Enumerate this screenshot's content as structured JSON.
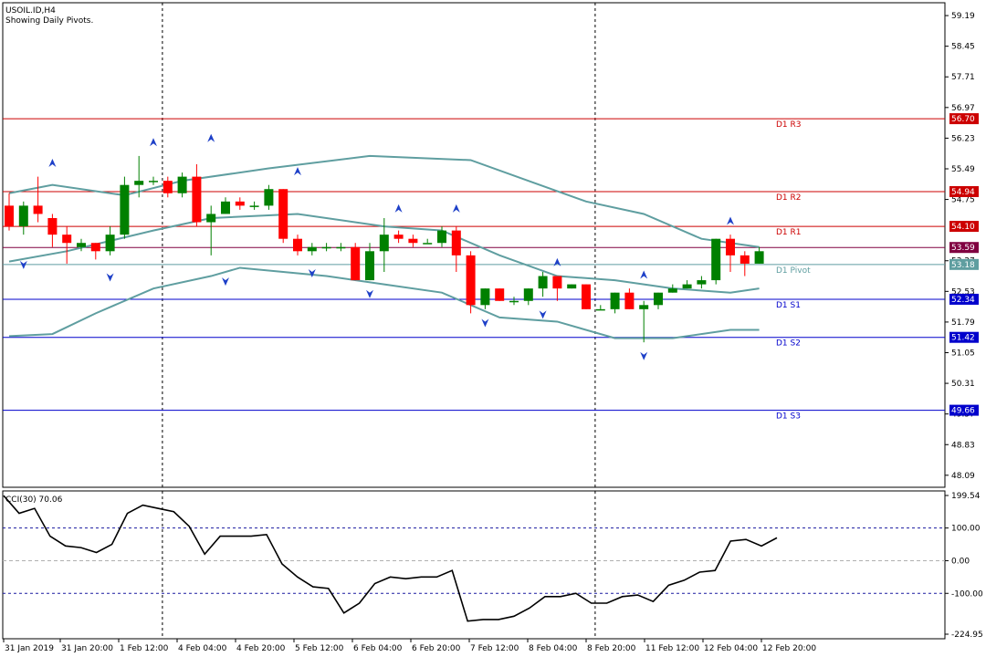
{
  "header": {
    "symbol": "USOIL.ID,H4",
    "indicator_note": "Showing Daily Pivots."
  },
  "cci": {
    "label": "CCI(30) 70.06"
  },
  "chart_data": [
    {
      "type": "candlestick",
      "title": "USOIL.ID,H4",
      "ylim": [
        47.8,
        59.5
      ],
      "y_ticks": [
        "59.19",
        "58.45",
        "57.71",
        "56.97",
        "56.23",
        "55.49",
        "54.75",
        "53.27",
        "52.53",
        "51.79",
        "51.05",
        "50.31",
        "49.57",
        "48.83",
        "48.09"
      ],
      "x_ticks": [
        "31 Jan 2019",
        "31 Jan 20:00",
        "1 Feb 12:00",
        "4 Feb 04:00",
        "4 Feb 20:00",
        "5 Feb 12:00",
        "6 Feb 04:00",
        "6 Feb 20:00",
        "7 Feb 12:00",
        "8 Feb 04:00",
        "8 Feb 20:00",
        "11 Feb 12:00",
        "12 Feb 04:00",
        "12 Feb 20:00"
      ],
      "period_separators_after_index": [
        10,
        40
      ],
      "pivot_levels": [
        {
          "name": "D1 R3",
          "value": 56.7,
          "value_label": "56.70",
          "color": "#cc0000"
        },
        {
          "name": "D1 R2",
          "value": 54.94,
          "value_label": "54.94",
          "color": "#cc0000"
        },
        {
          "name": "D1 R1",
          "value": 54.1,
          "value_label": "54.10",
          "color": "#cc0000"
        },
        {
          "name": "D1 Pivot",
          "value": 53.18,
          "value_label": "53.18",
          "color": "#5f9ea0"
        },
        {
          "name": "D1 S1",
          "value": 52.34,
          "value_label": "52.34",
          "color": "#0000cc"
        },
        {
          "name": "D1 S2",
          "value": 51.42,
          "value_label": "51.42",
          "color": "#0000cc"
        },
        {
          "name": "D1 S3",
          "value": 49.66,
          "value_label": "49.66",
          "color": "#0000cc"
        }
      ],
      "current_price": {
        "value": 53.59,
        "label": "53.59",
        "color": "#800040"
      },
      "candles": [
        [
          54.6,
          54.1,
          54.9,
          54.0
        ],
        [
          54.1,
          54.6,
          54.7,
          53.9
        ],
        [
          54.6,
          54.4,
          55.3,
          54.2
        ],
        [
          54.3,
          53.9,
          54.4,
          53.6
        ],
        [
          53.9,
          53.7,
          54.1,
          53.2
        ],
        [
          53.6,
          53.7,
          53.8,
          53.5
        ],
        [
          53.7,
          53.5,
          53.7,
          53.3
        ],
        [
          53.5,
          53.9,
          54.1,
          53.4
        ],
        [
          53.9,
          55.1,
          55.3,
          53.8
        ],
        [
          55.1,
          55.2,
          55.8,
          54.8
        ],
        [
          55.2,
          55.2,
          55.3,
          55.1
        ],
        [
          55.2,
          54.9,
          55.3,
          54.8
        ],
        [
          54.9,
          55.3,
          55.4,
          54.8
        ],
        [
          55.3,
          54.2,
          55.6,
          54.1
        ],
        [
          54.2,
          54.4,
          54.6,
          53.4
        ],
        [
          54.4,
          54.7,
          54.8,
          54.4
        ],
        [
          54.7,
          54.6,
          54.8,
          54.5
        ],
        [
          54.6,
          54.6,
          54.7,
          54.5
        ],
        [
          54.6,
          55.0,
          55.1,
          54.5
        ],
        [
          55.0,
          53.8,
          55.0,
          53.7
        ],
        [
          53.8,
          53.5,
          53.9,
          53.4
        ],
        [
          53.5,
          53.6,
          53.7,
          53.4
        ],
        [
          53.6,
          53.6,
          53.7,
          53.5
        ],
        [
          53.6,
          53.6,
          53.7,
          53.5
        ],
        [
          53.6,
          52.8,
          53.7,
          52.8
        ],
        [
          52.8,
          53.5,
          53.7,
          52.8
        ],
        [
          53.5,
          53.9,
          54.3,
          53.0
        ],
        [
          53.9,
          53.8,
          54.0,
          53.7
        ],
        [
          53.8,
          53.7,
          53.9,
          53.6
        ],
        [
          53.7,
          53.7,
          53.8,
          53.7
        ],
        [
          53.7,
          54.0,
          54.1,
          53.6
        ],
        [
          54.0,
          53.4,
          54.1,
          53.0
        ],
        [
          53.4,
          52.2,
          53.5,
          52.0
        ],
        [
          52.2,
          52.6,
          52.6,
          52.1
        ],
        [
          52.6,
          52.3,
          52.6,
          52.3
        ],
        [
          52.3,
          52.3,
          52.4,
          52.2
        ],
        [
          52.3,
          52.6,
          52.6,
          52.2
        ],
        [
          52.6,
          52.9,
          53.0,
          52.4
        ],
        [
          52.9,
          52.6,
          52.9,
          52.3
        ],
        [
          52.6,
          52.7,
          52.7,
          52.6
        ],
        [
          52.7,
          52.1,
          52.7,
          52.1
        ],
        [
          52.1,
          52.1,
          52.2,
          52.1
        ],
        [
          52.1,
          52.5,
          52.5,
          52.0
        ],
        [
          52.5,
          52.1,
          52.6,
          52.1
        ],
        [
          52.1,
          52.2,
          52.3,
          51.3
        ],
        [
          52.2,
          52.5,
          52.5,
          52.1
        ],
        [
          52.5,
          52.6,
          52.7,
          52.5
        ],
        [
          52.6,
          52.7,
          52.8,
          52.6
        ],
        [
          52.7,
          52.8,
          52.9,
          52.6
        ],
        [
          52.8,
          53.8,
          53.8,
          52.7
        ],
        [
          53.8,
          53.4,
          53.9,
          53.0
        ],
        [
          53.4,
          53.2,
          53.5,
          52.9
        ],
        [
          53.2,
          53.5,
          53.6,
          53.2
        ]
      ],
      "bollinger": {
        "upper": [
          [
            0,
            54.9
          ],
          [
            3,
            55.1
          ],
          [
            8,
            54.85
          ],
          [
            12,
            55.2
          ],
          [
            18,
            55.5
          ],
          [
            25,
            55.8
          ],
          [
            32,
            55.7
          ],
          [
            36,
            55.2
          ],
          [
            40,
            54.7
          ],
          [
            44,
            54.4
          ],
          [
            48,
            53.8
          ],
          [
            52,
            53.6
          ]
        ],
        "middle": [
          [
            0,
            53.25
          ],
          [
            4,
            53.5
          ],
          [
            10,
            54.0
          ],
          [
            14,
            54.3
          ],
          [
            20,
            54.4
          ],
          [
            26,
            54.1
          ],
          [
            30,
            54.0
          ],
          [
            34,
            53.4
          ],
          [
            38,
            52.9
          ],
          [
            42,
            52.8
          ],
          [
            46,
            52.6
          ],
          [
            50,
            52.5
          ],
          [
            52,
            52.6
          ]
        ],
        "lower": [
          [
            0,
            51.45
          ],
          [
            3,
            51.5
          ],
          [
            6,
            52.0
          ],
          [
            10,
            52.6
          ],
          [
            14,
            52.9
          ],
          [
            16,
            53.1
          ],
          [
            22,
            52.9
          ],
          [
            26,
            52.7
          ],
          [
            30,
            52.5
          ],
          [
            34,
            51.9
          ],
          [
            38,
            51.8
          ],
          [
            42,
            51.4
          ],
          [
            46,
            51.4
          ],
          [
            50,
            51.6
          ],
          [
            52,
            51.6
          ]
        ]
      },
      "fractals_up": [
        [
          3,
          55.6
        ],
        [
          10,
          56.1
        ],
        [
          14,
          56.2
        ],
        [
          20,
          55.4
        ],
        [
          27,
          54.5
        ],
        [
          31,
          54.5
        ],
        [
          38,
          53.2
        ],
        [
          44,
          52.9
        ],
        [
          50,
          54.2
        ]
      ],
      "fractals_down": [
        [
          1,
          53.2
        ],
        [
          7,
          52.9
        ],
        [
          15,
          52.8
        ],
        [
          21,
          53.0
        ],
        [
          25,
          52.5
        ],
        [
          33,
          51.8
        ],
        [
          37,
          52.0
        ],
        [
          44,
          51.0
        ]
      ]
    },
    {
      "type": "line",
      "title": "CCI(30) 70.06",
      "ylim": [
        -224.95,
        199.54
      ],
      "y_ticks": [
        "199.54",
        "100.00",
        "0.00",
        "-100.00",
        "-224.95"
      ],
      "levels": [
        100,
        0,
        -100
      ],
      "values": [
        [
          0,
          199
        ],
        [
          2,
          145
        ],
        [
          4,
          160
        ],
        [
          6,
          75
        ],
        [
          8,
          45
        ],
        [
          10,
          40
        ],
        [
          12,
          25
        ],
        [
          14,
          50
        ],
        [
          16,
          145
        ],
        [
          18,
          170
        ],
        [
          20,
          160
        ],
        [
          22,
          150
        ],
        [
          24,
          105
        ],
        [
          26,
          20
        ],
        [
          28,
          75
        ],
        [
          30,
          75
        ],
        [
          32,
          75
        ],
        [
          34,
          80
        ],
        [
          36,
          -10
        ],
        [
          38,
          -50
        ],
        [
          40,
          -80
        ],
        [
          42,
          -85
        ],
        [
          44,
          -160
        ],
        [
          46,
          -130
        ],
        [
          48,
          -70
        ],
        [
          50,
          -50
        ],
        [
          52,
          -55
        ],
        [
          54,
          -50
        ],
        [
          56,
          -50
        ],
        [
          58,
          -30
        ],
        [
          60,
          -185
        ],
        [
          62,
          -180
        ],
        [
          64,
          -180
        ],
        [
          66,
          -170
        ],
        [
          68,
          -145
        ],
        [
          70,
          -110
        ],
        [
          72,
          -110
        ],
        [
          74,
          -100
        ],
        [
          76,
          -130
        ],
        [
          78,
          -130
        ],
        [
          80,
          -110
        ],
        [
          82,
          -105
        ],
        [
          84,
          -125
        ],
        [
          86,
          -75
        ],
        [
          88,
          -60
        ],
        [
          90,
          -35
        ],
        [
          92,
          -30
        ],
        [
          94,
          60
        ],
        [
          96,
          65
        ],
        [
          98,
          45
        ],
        [
          100,
          70
        ]
      ]
    }
  ]
}
